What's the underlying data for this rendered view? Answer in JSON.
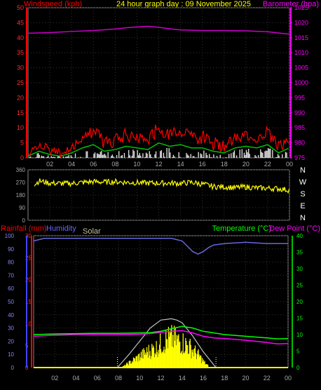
{
  "header": {
    "windspeed_label": "Windspeed (kph)",
    "title": "24 hour graph day : 09 November 2025",
    "barometer_label": "Barometer (hpa)"
  },
  "lower_header": {
    "rainfall_label": "Rainfall (mm)",
    "humidity_label": "Humidity",
    "solar_label": "Solar",
    "temperature_label": "Temperature (°C)",
    "dewpoint_label": "Dew Point (°C)"
  },
  "colors": {
    "wind": "#ff0000",
    "gust_area": "#ffffff",
    "wind_avg": "#00c000",
    "barometer": "#cc00cc",
    "direction": "#ffff00",
    "humidity": "#6666dd",
    "temperature": "#00ff00",
    "dewpoint": "#ff00ff",
    "rain_axis": "#ff0000",
    "solar": "#ffff00",
    "solar_curve": "#c0c0c0"
  },
  "x_tick_labels": [
    "02",
    "04",
    "06",
    "08",
    "10",
    "12",
    "14",
    "16",
    "18",
    "20",
    "22",
    "00"
  ],
  "chart_data": [
    {
      "type": "line",
      "panel": "wind-barometer",
      "x_hours": [
        0,
        24
      ],
      "left_axis": {
        "label": "Windspeed (kph)",
        "ticks": [
          0,
          5,
          10,
          15,
          20,
          25,
          30,
          35,
          40,
          45,
          50
        ],
        "ylim": [
          0,
          50
        ]
      },
      "right_axis": {
        "label": "Barometer (hpa)",
        "ticks": [
          975,
          980,
          985,
          990,
          995,
          1000,
          1005,
          1010,
          1015,
          1020,
          1025
        ],
        "ylim": [
          975,
          1025
        ]
      },
      "series": [
        {
          "name": "Barometer (hpa)",
          "axis": "right",
          "x": [
            0,
            2,
            4,
            6,
            8,
            9,
            10,
            11,
            12,
            13,
            14,
            16,
            18,
            20,
            22,
            23,
            24
          ],
          "values": [
            1016.5,
            1016.7,
            1017.1,
            1017.4,
            1017.9,
            1018.3,
            1018.6,
            1018.8,
            1018.5,
            1018.0,
            1017.6,
            1017.4,
            1017.4,
            1017.3,
            1017.0,
            1016.6,
            1016.2
          ]
        },
        {
          "name": "Windspeed (kph)",
          "axis": "left",
          "x": [
            0,
            1,
            2,
            3,
            4,
            5,
            6,
            7,
            8,
            9,
            10,
            11,
            12,
            13,
            14,
            15,
            16,
            17,
            18,
            19,
            20,
            21,
            22,
            23,
            24
          ],
          "values": [
            1,
            4,
            2,
            1,
            3,
            6,
            8,
            4,
            5,
            7,
            6,
            5,
            9,
            7,
            8,
            6,
            6,
            4,
            3,
            6,
            7,
            6,
            8,
            3,
            6
          ],
          "gust_values": [
            3,
            6,
            5,
            3,
            5,
            9,
            12,
            8,
            9,
            11,
            10,
            9,
            13,
            10,
            12,
            10,
            10,
            8,
            6,
            9,
            10,
            9,
            12,
            7,
            10
          ]
        }
      ]
    },
    {
      "type": "line",
      "panel": "wind-direction",
      "x_hours": [
        0,
        24
      ],
      "left_axis": {
        "ticks": [
          0,
          90,
          180,
          270,
          360
        ],
        "ylim": [
          0,
          360
        ]
      },
      "compass_labels": [
        "N",
        "W",
        "S",
        "E",
        "N"
      ],
      "series": [
        {
          "name": "Wind direction (deg)",
          "x": [
            0.6,
            1,
            2,
            3,
            4,
            5,
            6,
            7,
            8,
            9,
            10,
            11,
            12,
            13,
            14,
            15,
            16,
            17,
            18,
            19,
            20,
            21,
            22,
            23,
            24
          ],
          "values": [
            255,
            280,
            265,
            262,
            262,
            270,
            275,
            272,
            275,
            270,
            268,
            265,
            265,
            265,
            262,
            270,
            258,
            240,
            238,
            232,
            238,
            230,
            228,
            225,
            215
          ]
        }
      ]
    },
    {
      "type": "line",
      "panel": "rain-humidity-solar-temperature",
      "x_hours": [
        0,
        24
      ],
      "axes": {
        "humidity": {
          "label": "Humidity",
          "ticks": [
            0,
            10,
            20,
            30,
            40,
            50,
            60,
            70,
            80,
            90,
            100
          ],
          "ylim": [
            0,
            100
          ]
        },
        "rainfall": {
          "label": "Rainfall (mm)",
          "ticks": [
            0,
            5,
            10,
            15,
            20,
            25,
            30
          ],
          "ylim": [
            0,
            30
          ]
        },
        "temperature": {
          "label": "Temperature (°C)",
          "ticks": [
            0,
            5,
            10,
            15,
            20,
            25,
            30,
            35,
            40
          ],
          "ylim": [
            0,
            40
          ]
        }
      },
      "series": [
        {
          "name": "Humidity",
          "axis": "humidity",
          "x": [
            0,
            1,
            2,
            4,
            6,
            8,
            10,
            12,
            13,
            14,
            14.5,
            15,
            15.5,
            16,
            16.5,
            17,
            18,
            20,
            22,
            24
          ],
          "values": [
            96,
            98,
            98,
            98,
            98,
            98,
            98,
            98,
            98,
            96,
            92,
            88,
            86,
            88,
            91,
            93,
            94,
            95,
            94,
            94
          ]
        },
        {
          "name": "Temperature (°C)",
          "axis": "temperature",
          "x": [
            0,
            2,
            4,
            6,
            8,
            10,
            11,
            12,
            13,
            14,
            15,
            16,
            17,
            18,
            20,
            22,
            23,
            24
          ],
          "values": [
            10.0,
            10.2,
            10.3,
            10.4,
            10.4,
            10.5,
            10.6,
            11.0,
            11.8,
            12.5,
            12.0,
            11.0,
            10.5,
            10.0,
            9.5,
            9.0,
            8.7,
            8.8
          ]
        },
        {
          "name": "Dew Point (°C)",
          "axis": "temperature",
          "x": [
            0,
            2,
            4,
            6,
            8,
            10,
            11,
            12,
            13,
            14,
            15,
            16,
            17,
            18,
            20,
            22,
            23,
            24
          ],
          "values": [
            9.5,
            9.8,
            10.0,
            10.0,
            10.0,
            10.1,
            10.3,
            10.7,
            11.0,
            11.2,
            10.5,
            9.5,
            9.0,
            8.8,
            8.3,
            7.6,
            7.2,
            7.3
          ]
        },
        {
          "name": "Solar",
          "axis": "humidity",
          "x": [
            8.3,
            9,
            10,
            11,
            11.5,
            12,
            12.5,
            13,
            13.5,
            14,
            14.5,
            15,
            15.5,
            16,
            16.5
          ],
          "values": [
            0.5,
            5,
            12,
            18,
            20,
            25,
            29,
            30,
            28,
            26,
            23,
            18,
            13,
            6,
            1
          ]
        },
        {
          "name": "Solar max",
          "axis": "humidity",
          "x": [
            7.9,
            9,
            10,
            11,
            12,
            13,
            13.5,
            14,
            15,
            16,
            17.2
          ],
          "values": [
            0,
            10,
            20,
            30,
            36,
            37,
            36,
            34,
            24,
            12,
            0
          ]
        },
        {
          "name": "Rainfall (mm)",
          "axis": "rainfall",
          "x": [
            0,
            24
          ],
          "values": [
            0,
            0
          ]
        }
      ]
    }
  ]
}
